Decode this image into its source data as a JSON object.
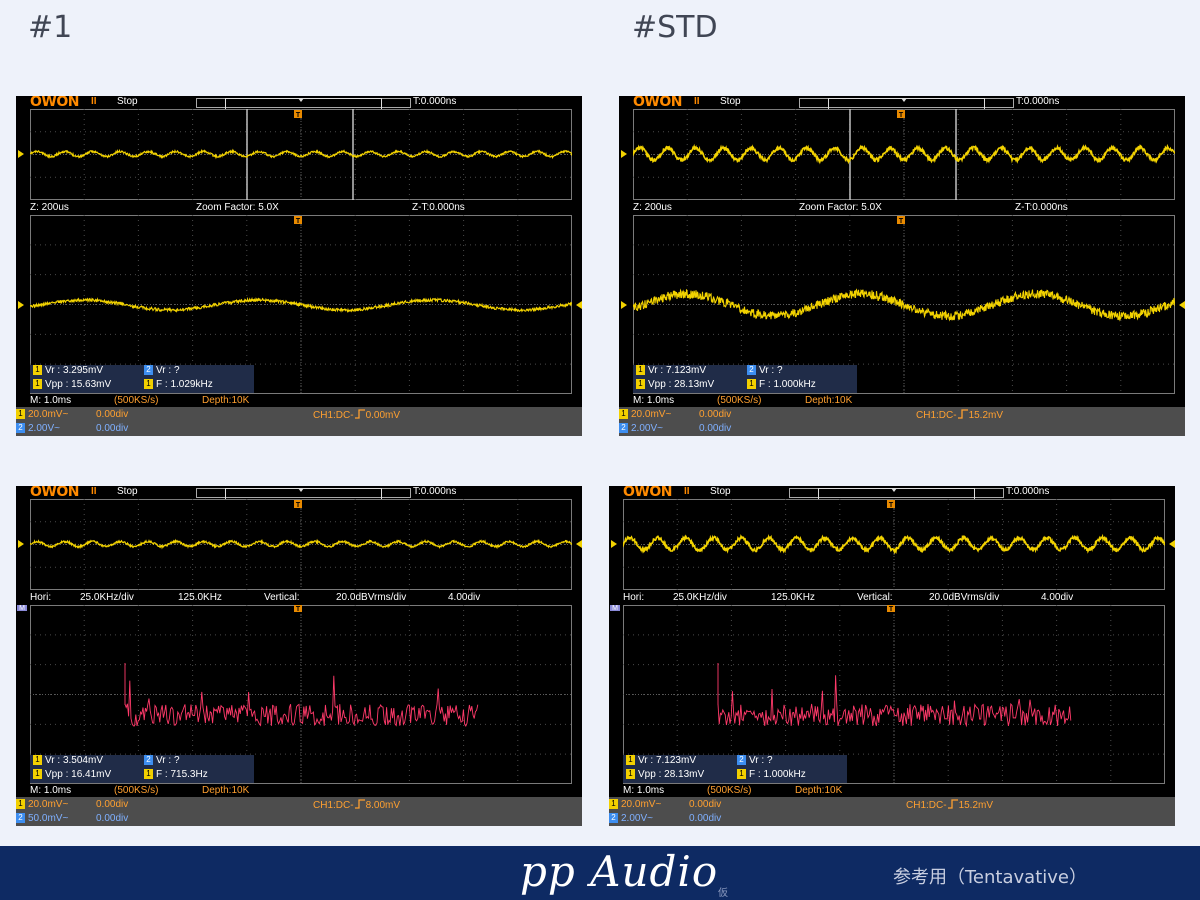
{
  "headings": {
    "left": "#1",
    "right": "#STD"
  },
  "panels": [
    {
      "id": "p1",
      "brand": "OWON",
      "pause": "II",
      "state": "Stop",
      "trig_time": "T:0.000ns",
      "mid": {
        "a": "Z: 200us",
        "b": "Zoom Factor: 5.0X",
        "c": "Z-T:0.000ns"
      },
      "meas": [
        {
          "ch": "1",
          "text": "Vr : 3.295mV"
        },
        {
          "ch": "2",
          "text": "Vr :     ?"
        },
        {
          "ch": "1",
          "text": "Vpp : 15.63mV"
        },
        {
          "ch": "1",
          "text": "F : 1.029kHz"
        }
      ],
      "time": {
        "m": "M: 1.0ms",
        "rate": "(500KS/s)",
        "depth": "Depth:10K"
      },
      "ch1": {
        "chip": "1",
        "scale": "20.0mV~",
        "offset": "0.00div"
      },
      "ch2": {
        "chip": "2",
        "scale": "2.00V~",
        "offset": "0.00div"
      },
      "trigger": {
        "prefix": "CH1:DC-",
        "icon": "rising-edge",
        "value": "0.00mV"
      }
    },
    {
      "id": "p2",
      "brand": "OWON",
      "pause": "II",
      "state": "Stop",
      "trig_time": "T:0.000ns",
      "mid": {
        "a": "Z: 200us",
        "b": "Zoom Factor: 5.0X",
        "c": "Z-T:0.000ns"
      },
      "meas": [
        {
          "ch": "1",
          "text": "Vr : 7.123mV"
        },
        {
          "ch": "2",
          "text": "Vr :     ?"
        },
        {
          "ch": "1",
          "text": "Vpp : 28.13mV"
        },
        {
          "ch": "1",
          "text": "F : 1.000kHz"
        }
      ],
      "time": {
        "m": "M: 1.0ms",
        "rate": "(500KS/s)",
        "depth": "Depth:10K"
      },
      "ch1": {
        "chip": "1",
        "scale": "20.0mV~",
        "offset": "0.00div"
      },
      "ch2": {
        "chip": "2",
        "scale": "2.00V~",
        "offset": "0.00div"
      },
      "trigger": {
        "prefix": "CH1:DC-",
        "icon": "rising-edge",
        "value": "15.2mV"
      }
    },
    {
      "id": "p3",
      "brand": "OWON",
      "pause": "II",
      "state": "Stop",
      "trig_time": "T:0.000ns",
      "fft": {
        "hori": "Hori:",
        "hdiv": "25.0KHz/div",
        "hcenter": "125.0KHz",
        "vert": "Vertical:",
        "vdiv": "20.0dBVrms/div",
        "voff": "4.00div"
      },
      "meas": [
        {
          "ch": "1",
          "text": "Vr : 3.504mV"
        },
        {
          "ch": "2",
          "text": "Vr :     ?"
        },
        {
          "ch": "1",
          "text": "Vpp : 16.41mV"
        },
        {
          "ch": "1",
          "text": "F : 715.3Hz"
        }
      ],
      "time": {
        "m": "M: 1.0ms",
        "rate": "(500KS/s)",
        "depth": "Depth:10K"
      },
      "ch1": {
        "chip": "1",
        "scale": "20.0mV~",
        "offset": "0.00div"
      },
      "ch2": {
        "chip": "2",
        "scale": "50.0mV~",
        "offset": "0.00div"
      },
      "trigger": {
        "prefix": "CH1:DC-",
        "icon": "rising-edge",
        "value": "8.00mV"
      }
    },
    {
      "id": "p4",
      "brand": "OWON",
      "pause": "II",
      "state": "Stop",
      "trig_time": "T:0.000ns",
      "fft": {
        "hori": "Hori:",
        "hdiv": "25.0KHz/div",
        "hcenter": "125.0KHz",
        "vert": "Vertical:",
        "vdiv": "20.0dBVrms/div",
        "voff": "4.00div"
      },
      "meas": [
        {
          "ch": "1",
          "text": "Vr : 7.123mV"
        },
        {
          "ch": "2",
          "text": "Vr :     ?"
        },
        {
          "ch": "1",
          "text": "Vpp : 28.13mV"
        },
        {
          "ch": "1",
          "text": "F : 1.000kHz"
        }
      ],
      "time": {
        "m": "M: 1.0ms",
        "rate": "(500KS/s)",
        "depth": "Depth:10K"
      },
      "ch1": {
        "chip": "1",
        "scale": "20.0mV~",
        "offset": "0.00div"
      },
      "ch2": {
        "chip": "2",
        "scale": "2.00V~",
        "offset": "0.00div"
      },
      "trigger": {
        "prefix": "CH1:DC-",
        "icon": "rising-edge",
        "value": "15.2mV"
      }
    }
  ],
  "footer": {
    "brand": "pp Audio",
    "brand_sub": "仮",
    "note": "参考用（Tentavative）"
  },
  "colors": {
    "trace_ch1": "#f2d200",
    "trace_fft": "#ff3a6a",
    "grid": "#5a5a5a",
    "footer_bg": "#0e2a63"
  },
  "icons": [
    "trigger-marker-icon",
    "channel-1-marker-icon",
    "rising-edge-icon",
    "math-marker-icon"
  ]
}
